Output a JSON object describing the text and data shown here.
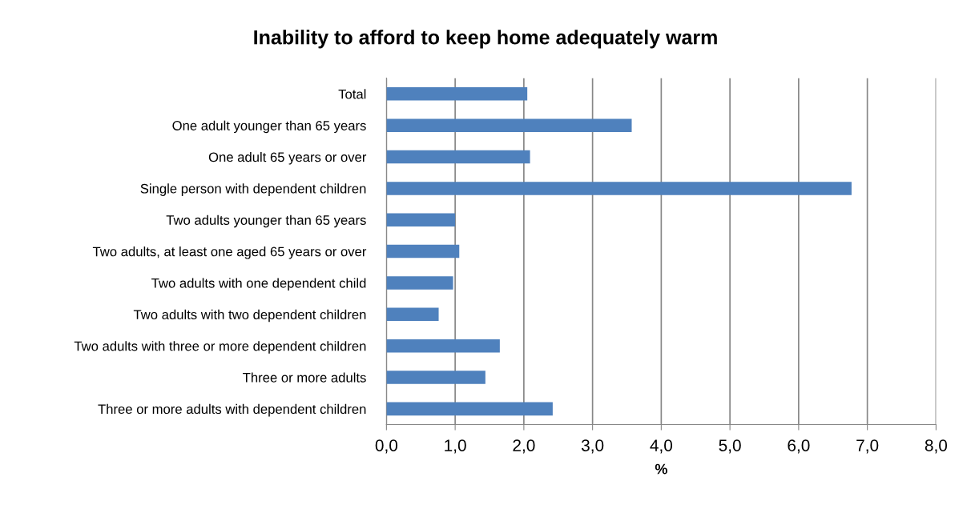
{
  "chart_data": {
    "type": "bar",
    "orientation": "horizontal",
    "title": "Inability to afford to keep home adequately warm",
    "xlabel": "%",
    "categories": [
      "Total",
      "One adult younger than 65 years",
      "One adult 65 years or over",
      "Single person with dependent children",
      "Two adults younger than 65 years",
      "Two adults, at least one aged 65 years or over",
      "Two adults with one dependent child",
      "Two adults with two dependent children",
      "Two adults with three or more dependent children",
      "Three or more adults",
      "Three or more adults with dependent children"
    ],
    "values": [
      2.05,
      3.57,
      2.09,
      6.77,
      1.0,
      1.06,
      0.97,
      0.76,
      1.65,
      1.44,
      2.42
    ],
    "color": "#4f81bd",
    "xlim": [
      0,
      8
    ],
    "xticks": [
      {
        "value": 0,
        "label": "0,0"
      },
      {
        "value": 1,
        "label": "1,0"
      },
      {
        "value": 2,
        "label": "2,0"
      },
      {
        "value": 3,
        "label": "3,0"
      },
      {
        "value": 4,
        "label": "4,0"
      },
      {
        "value": 5,
        "label": "5,0"
      },
      {
        "value": 6,
        "label": "6,0"
      },
      {
        "value": 7,
        "label": "7,0"
      },
      {
        "value": 8,
        "label": "8,0"
      }
    ],
    "grid": "x",
    "legend": false
  }
}
